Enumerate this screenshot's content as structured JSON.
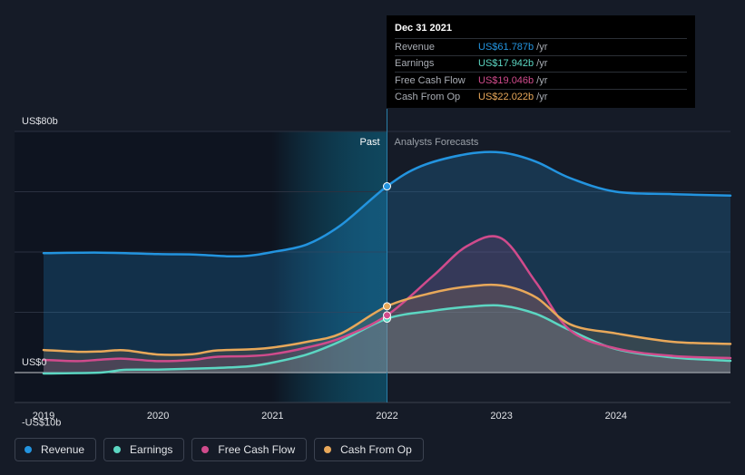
{
  "chart_data": {
    "type": "area",
    "title": "",
    "xlabel": "",
    "ylabel": "",
    "ylim": [
      -10,
      80
    ],
    "xlim": [
      2019,
      2025
    ],
    "y_tick_labels": [
      "US$80b",
      "US$0",
      "-US$10b"
    ],
    "x_tick_labels": [
      "2019",
      "2020",
      "2021",
      "2022",
      "2023",
      "2024"
    ],
    "regions": {
      "past_label": "Past",
      "forecast_label": "Analysts Forecasts",
      "divider_x": 2022
    },
    "series": [
      {
        "name": "Revenue",
        "color": "#2394df",
        "points": [
          [
            2019,
            39.6
          ],
          [
            2019.5,
            39.8
          ],
          [
            2020,
            39.3
          ],
          [
            2020.3,
            39.2
          ],
          [
            2020.6,
            38.6
          ],
          [
            2020.8,
            38.8
          ],
          [
            2021,
            40.0
          ],
          [
            2021.3,
            42.5
          ],
          [
            2021.6,
            49.0
          ],
          [
            2022,
            61.8
          ],
          [
            2022.3,
            68.5
          ],
          [
            2022.7,
            72.5
          ],
          [
            2023,
            73.0
          ],
          [
            2023.3,
            70.0
          ],
          [
            2023.6,
            64.5
          ],
          [
            2024,
            60.0
          ],
          [
            2024.5,
            59.2
          ],
          [
            2025,
            58.7
          ]
        ]
      },
      {
        "name": "Earnings",
        "color": "#5cd6c2",
        "points": [
          [
            2019,
            -0.3
          ],
          [
            2019.5,
            0
          ],
          [
            2019.7,
            0.9
          ],
          [
            2020,
            1.0
          ],
          [
            2020.5,
            1.5
          ],
          [
            2020.8,
            2.1
          ],
          [
            2021,
            3.3
          ],
          [
            2021.3,
            6.0
          ],
          [
            2021.6,
            10.5
          ],
          [
            2022,
            17.9
          ],
          [
            2022.4,
            20.5
          ],
          [
            2022.7,
            21.8
          ],
          [
            2023,
            22.2
          ],
          [
            2023.3,
            19.5
          ],
          [
            2023.6,
            14.0
          ],
          [
            2024,
            7.8
          ],
          [
            2024.5,
            5.0
          ],
          [
            2025,
            3.9
          ]
        ]
      },
      {
        "name": "Free Cash Flow",
        "color": "#d04b8c",
        "points": [
          [
            2019,
            4.2
          ],
          [
            2019.3,
            3.8
          ],
          [
            2019.5,
            4.3
          ],
          [
            2019.7,
            4.6
          ],
          [
            2020,
            3.8
          ],
          [
            2020.3,
            4.2
          ],
          [
            2020.5,
            5.2
          ],
          [
            2020.8,
            5.5
          ],
          [
            2021,
            6.1
          ],
          [
            2021.3,
            8.3
          ],
          [
            2021.6,
            11.5
          ],
          [
            2022,
            19.0
          ],
          [
            2022.4,
            32.0
          ],
          [
            2022.7,
            42.0
          ],
          [
            2023,
            44.5
          ],
          [
            2023.3,
            30.0
          ],
          [
            2023.6,
            14.0
          ],
          [
            2024,
            8.0
          ],
          [
            2024.5,
            5.5
          ],
          [
            2025,
            4.8
          ]
        ]
      },
      {
        "name": "Cash From Op",
        "color": "#e8a85a",
        "points": [
          [
            2019,
            7.5
          ],
          [
            2019.3,
            6.9
          ],
          [
            2019.5,
            7.0
          ],
          [
            2019.7,
            7.4
          ],
          [
            2020,
            6.0
          ],
          [
            2020.3,
            6.1
          ],
          [
            2020.5,
            7.3
          ],
          [
            2020.8,
            7.7
          ],
          [
            2021,
            8.3
          ],
          [
            2021.3,
            10.2
          ],
          [
            2021.6,
            13.0
          ],
          [
            2022,
            22.0
          ],
          [
            2022.4,
            26.5
          ],
          [
            2022.7,
            28.5
          ],
          [
            2023,
            28.9
          ],
          [
            2023.3,
            25.0
          ],
          [
            2023.6,
            16.0
          ],
          [
            2024,
            13.0
          ],
          [
            2024.5,
            10.2
          ],
          [
            2025,
            9.5
          ]
        ]
      }
    ],
    "tooltip": {
      "date": "Dec 31 2021",
      "rows": [
        {
          "label": "Revenue",
          "value": "US$61.787b",
          "unit": "/yr",
          "color": "#2394df"
        },
        {
          "label": "Earnings",
          "value": "US$17.942b",
          "unit": "/yr",
          "color": "#5cd6c2"
        },
        {
          "label": "Free Cash Flow",
          "value": "US$19.046b",
          "unit": "/yr",
          "color": "#d04b8c"
        },
        {
          "label": "Cash From Op",
          "value": "US$22.022b",
          "unit": "/yr",
          "color": "#e8a85a"
        }
      ]
    },
    "legend": [
      {
        "label": "Revenue",
        "color": "#2394df"
      },
      {
        "label": "Earnings",
        "color": "#5cd6c2"
      },
      {
        "label": "Free Cash Flow",
        "color": "#d04b8c"
      },
      {
        "label": "Cash From Op",
        "color": "#e8a85a"
      }
    ]
  }
}
